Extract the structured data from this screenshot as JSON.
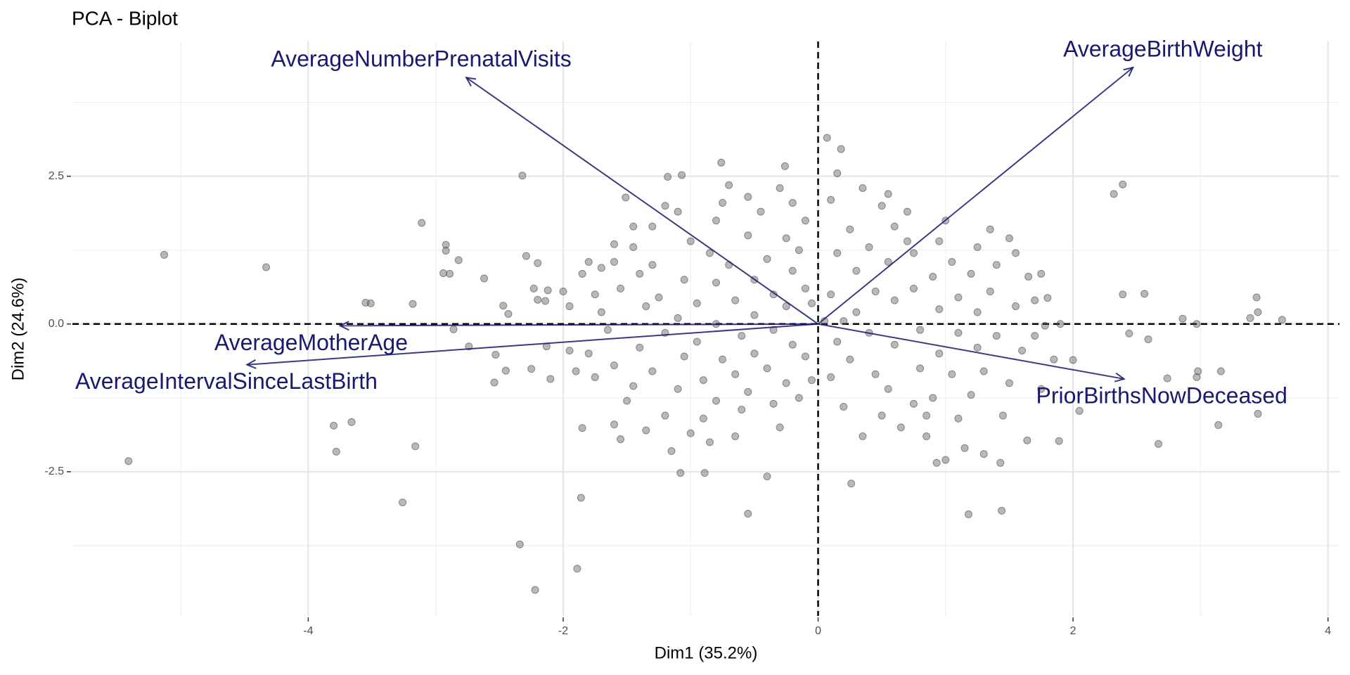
{
  "chart_data": {
    "type": "biplot",
    "title": "PCA - Biplot",
    "xlabel": "Dim1 (35.2%)",
    "ylabel": "Dim2 (24.6%)",
    "xlim": [
      -5.85,
      4.09
    ],
    "ylim": [
      -4.94,
      4.78
    ],
    "xticks": [
      -4,
      -2,
      0,
      2,
      4
    ],
    "yticks": [
      2.5,
      {
        "value": 0,
        "label": "0.0"
      },
      -2.5
    ],
    "grid": true,
    "points": {
      "color": "#4d4d4d",
      "x": [
        -5.13,
        -5.41,
        -4.33,
        -3.8,
        -3.78,
        -3.66,
        -3.55,
        -3.51,
        -3.26,
        -3.16,
        -3.11,
        -3.18,
        -2.92,
        -2.92,
        -2.94,
        -2.89,
        -2.82,
        -2.86,
        -2.74,
        -2.62,
        -2.34,
        -2.32,
        -2.29,
        -2.22,
        -2.2,
        -1.89,
        -1.86,
        -1.85,
        -2.53,
        -2.54,
        -2.45,
        -2.47,
        -2.43,
        -2.25,
        -2.23,
        -2.2,
        -2.13,
        -2.1,
        -2.12,
        -2.14,
        -1.51,
        -1.18,
        -1.07,
        -0.76,
        -0.26,
        0.07,
        0.18,
        -0.55,
        -0.4,
        -0.89,
        -1.08,
        0.26,
        1.18,
        1.43,
        1.44,
        0.93,
        2.32,
        2.39,
        2.39,
        2.56,
        2.44,
        2.59,
        2.86,
        2.97,
        2.74,
        2.67,
        2.97,
        2.98,
        3.14,
        3.16,
        3.39,
        3.44,
        3.45,
        3.45,
        3.64,
        2.0,
        2.05,
        1.64,
        1.89,
        1.8,
        1.78,
        -1.8,
        -1.7,
        -1.6,
        -1.55,
        -1.75,
        -1.7,
        -1.65,
        -1.8,
        -1.75,
        -1.6,
        -1.5,
        -1.6,
        -1.55,
        -1.45,
        -1.4,
        -1.35,
        -1.4,
        -1.45,
        -1.3,
        -1.3,
        -1.25,
        -1.2,
        -1.3,
        -1.2,
        -1.15,
        -1.1,
        -1.05,
        -1.1,
        -1.05,
        -1.1,
        -1.0,
        -0.95,
        -0.95,
        -0.9,
        -0.9,
        -0.85,
        -0.8,
        -0.75,
        -0.8,
        -0.8,
        -0.85,
        -0.8,
        -0.75,
        -0.7,
        -0.65,
        -0.6,
        -0.65,
        -0.6,
        -0.65,
        -0.55,
        -0.5,
        -0.5,
        -0.5,
        -0.55,
        -0.45,
        -0.4,
        -0.35,
        -0.35,
        -0.4,
        -0.35,
        -0.3,
        -0.25,
        -0.2,
        -0.25,
        -0.2,
        -0.25,
        -0.2,
        -0.15,
        -0.1,
        -0.1,
        -0.15,
        -0.05,
        -0.05,
        -0.1,
        -1.95,
        -1.9,
        -1.85,
        -1.35,
        -1.0,
        -0.7,
        -0.3,
        -0.55,
        -1.2,
        -1.45,
        -1.6,
        -2.0,
        -1.95,
        0.1,
        0.15,
        0.1,
        0.15,
        0.1,
        0.2,
        0.25,
        0.3,
        0.3,
        0.25,
        0.35,
        0.4,
        0.45,
        0.4,
        0.45,
        0.5,
        0.55,
        0.6,
        0.6,
        0.55,
        0.6,
        0.7,
        0.75,
        0.75,
        0.8,
        0.8,
        0.75,
        0.85,
        0.9,
        0.95,
        0.95,
        0.9,
        0.95,
        1.0,
        1.05,
        1.1,
        1.1,
        1.05,
        1.1,
        1.15,
        1.2,
        1.25,
        1.25,
        1.2,
        1.25,
        1.3,
        1.35,
        1.4,
        1.4,
        1.45,
        1.5,
        1.55,
        1.55,
        1.6,
        1.65,
        1.7,
        1.7,
        1.75,
        1.75,
        0.05,
        0.2,
        1.3,
        1.0,
        0.85,
        1.35,
        0.65,
        0.35,
        1.85,
        1.9,
        1.5,
        0.5,
        0.7,
        0.15,
        0.55
      ],
      "y": [
        1.17,
        -2.32,
        0.96,
        -1.72,
        -2.16,
        -1.66,
        0.36,
        0.35,
        -3.02,
        -2.07,
        1.71,
        0.34,
        1.34,
        1.24,
        0.86,
        0.85,
        1.08,
        -0.09,
        -0.38,
        0.77,
        -3.73,
        2.51,
        1.15,
        -4.5,
        1.03,
        -4.14,
        -2.94,
        -1.76,
        -0.52,
        -0.99,
        -0.79,
        0.31,
        0.17,
        -0.76,
        0.6,
        0.41,
        -0.38,
        -0.93,
        0.57,
        0.39,
        2.14,
        2.49,
        2.52,
        2.73,
        2.67,
        3.15,
        2.96,
        -3.21,
        -2.58,
        -2.52,
        -2.52,
        -2.7,
        -3.22,
        -2.35,
        -3.16,
        -2.35,
        2.2,
        2.36,
        0.5,
        0.51,
        -0.16,
        -0.26,
        0.09,
        0.0,
        -0.92,
        -2.03,
        -0.9,
        -0.8,
        -1.71,
        -0.8,
        0.1,
        0.45,
        0.2,
        -1.52,
        0.07,
        -0.61,
        -1.47,
        -1.97,
        -1.98,
        0.44,
        -0.03,
        1.05,
        0.95,
        1.35,
        0.6,
        0.5,
        0.2,
        -0.1,
        -0.5,
        -0.9,
        -0.7,
        -1.3,
        -1.7,
        -1.95,
        -1.05,
        -0.4,
        0.3,
        0.85,
        1.3,
        1.65,
        1.0,
        0.45,
        -0.15,
        -0.8,
        -1.55,
        -2.15,
        -1.1,
        -0.55,
        0.1,
        0.75,
        1.9,
        1.4,
        0.35,
        -0.3,
        -0.95,
        -1.6,
        -2.0,
        -1.3,
        -0.6,
        0.0,
        0.7,
        1.2,
        1.75,
        2.05,
        1.0,
        0.4,
        -0.2,
        -0.85,
        -1.45,
        -1.9,
        -1.15,
        -0.5,
        0.15,
        0.75,
        1.5,
        1.9,
        1.1,
        0.5,
        -0.1,
        -0.75,
        -1.35,
        -1.75,
        -1.0,
        -0.35,
        0.3,
        0.9,
        1.45,
        2.05,
        1.25,
        0.6,
        -0.55,
        -1.25,
        -0.95,
        0.35,
        1.75,
        0.3,
        -0.8,
        0.85,
        -1.8,
        -1.85,
        2.35,
        2.3,
        2.15,
        2.0,
        1.65,
        1.05,
        0.55,
        -0.45,
        2.1,
        1.2,
        0.5,
        -0.3,
        -0.9,
        -1.4,
        -0.6,
        0.2,
        0.9,
        1.6,
        2.3,
        1.3,
        0.55,
        -0.15,
        -0.85,
        -1.55,
        -1.1,
        -0.35,
        0.4,
        1.05,
        1.65,
        1.9,
        1.2,
        0.6,
        -0.1,
        -0.75,
        -1.35,
        -1.9,
        -1.25,
        -0.5,
        0.25,
        0.8,
        1.4,
        1.75,
        1.05,
        0.45,
        -0.15,
        -0.85,
        -1.6,
        -2.1,
        -1.2,
        -0.4,
        0.2,
        0.85,
        1.3,
        -0.8,
        0.55,
        -0.2,
        1.0,
        -1.55,
        -1.0,
        0.3,
        1.2,
        -0.45,
        0.8,
        -0.2,
        0.4,
        -1.1,
        0.85,
        0.05,
        0.05,
        -2.2,
        -2.3,
        -1.55,
        1.6,
        -1.75,
        -1.9,
        -0.6,
        0.0,
        1.45,
        2.0,
        1.4,
        2.55,
        2.2
      ]
    },
    "variables": {
      "color": "#191970",
      "items": [
        {
          "name": "AverageNumberPrenatalVisits",
          "x": -2.76,
          "y": 4.17
        },
        {
          "name": "AverageBirthWeight",
          "x": 2.47,
          "y": 4.34
        },
        {
          "name": "AverageMotherAge",
          "x": -3.75,
          "y": -0.03
        },
        {
          "name": "AverageIntervalSinceLastBirth",
          "x": -4.48,
          "y": -0.69
        },
        {
          "name": "PriorBirthsNowDeceased",
          "x": 2.4,
          "y": -0.93
        }
      ]
    }
  }
}
